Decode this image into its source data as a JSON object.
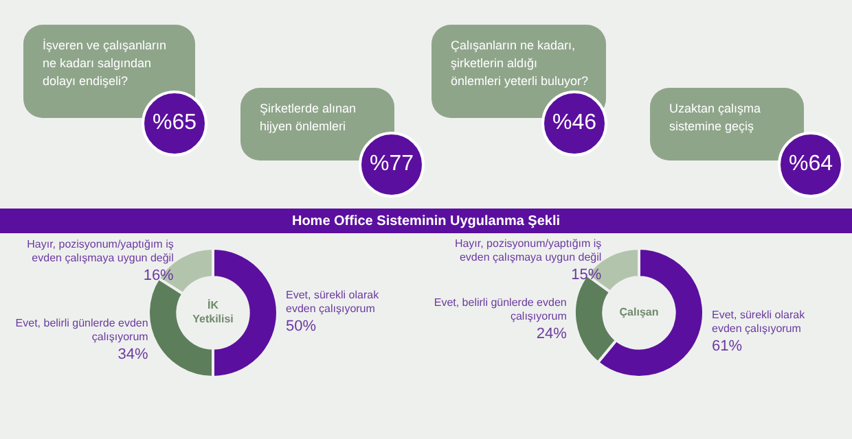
{
  "chart_data": [
    {
      "type": "other",
      "annotations": [
        "İşveren ve çalışanların ne kadarı salgından dolayı endişeli?",
        "%65",
        "Şirketlerde alınan hijyen önlemleri",
        "%77",
        "Çalışanların ne kadarı, şirketlerin aldığı önlemleri yeterli buluyor?",
        "%46",
        "Uzaktan çalışma sistemine geçiş",
        "%64"
      ]
    },
    {
      "type": "other",
      "title": "Home Office Sisteminin Uygulanma Şekli"
    },
    {
      "type": "donut",
      "title": "İK Yetkilisi",
      "categories": [
        "Evet, sürekli olarak evden çalışıyorum",
        "Evet, belirli günlerde evden çalışıyorum",
        "Hayır, pozisyonum/yaptığım iş evden çalışmaya uygun değil"
      ],
      "values": [
        50,
        34,
        16
      ],
      "colors": [
        "#5b0f9e",
        "#5d7e5a",
        "#b3c4ad"
      ],
      "value_labels": [
        "50%",
        "34%",
        "16%"
      ]
    },
    {
      "type": "donut",
      "title": "Çalışan",
      "categories": [
        "Evet, sürekli olarak evden çalışıyorum",
        "Evet, belirli günlerde evden çalışıyorum",
        "Hayır, pozisyonum/yaptığım iş evden çalışmaya uygun değil"
      ],
      "values": [
        61,
        24,
        15
      ],
      "colors": [
        "#5b0f9e",
        "#5d7e5a",
        "#b3c4ad"
      ],
      "value_labels": [
        "61%",
        "24%",
        "15%"
      ]
    }
  ]
}
